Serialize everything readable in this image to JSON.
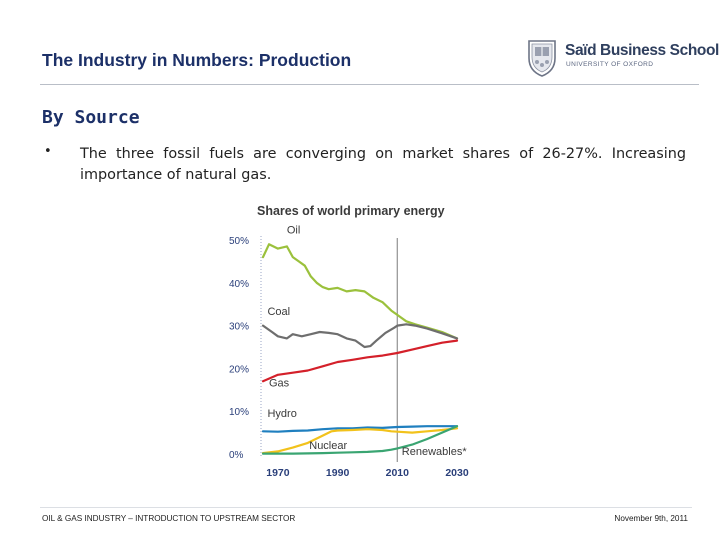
{
  "slide": {
    "title": "The Industry in Numbers: Production",
    "section_heading": "By Source",
    "bullet_marker": "•",
    "bullet_text": "The three fossil fuels are converging on market shares of 26-27%. Increasing importance of natural gas."
  },
  "logo": {
    "name": "Saïd Business School",
    "subtitle": "UNIVERSITY OF OXFORD"
  },
  "footer": {
    "left": "OIL & GAS INDUSTRY – INTRODUCTION TO UPSTREAM SECTOR",
    "right": "November 9th, 2011"
  },
  "colors": {
    "title": "#1c3068",
    "oil": "#9bc13c",
    "coal": "#6e6e6e",
    "gas": "#d4202a",
    "hydro": "#1f7fbf",
    "nuclear": "#f2c21b",
    "renewables": "#3aa572",
    "divider": "#9a9a9a"
  },
  "chart_data": {
    "type": "line",
    "title": "Shares of world primary energy",
    "xlabel": "",
    "ylabel": "",
    "xlim": [
      1965,
      2030
    ],
    "ylim": [
      0,
      50
    ],
    "x_ticks": [
      "1970",
      "1990",
      "2010",
      "2030"
    ],
    "y_ticks": [
      "0%",
      "10%",
      "20%",
      "30%",
      "40%",
      "50%"
    ],
    "divider_year": 2010,
    "series": [
      {
        "name": "Oil",
        "label": "Oil",
        "color": "#9bc13c",
        "x": [
          1965,
          1967,
          1970,
          1973,
          1975,
          1977,
          1979,
          1981,
          1983,
          1985,
          1987,
          1990,
          1993,
          1996,
          1999,
          2002,
          2005,
          2008,
          2010,
          2013,
          2016,
          2020,
          2025,
          2030
        ],
        "y": [
          46,
          49,
          48,
          48.5,
          46,
          45,
          44,
          41.5,
          40,
          39,
          38.5,
          38.8,
          38,
          38.3,
          38,
          36.5,
          35.5,
          33.5,
          32.5,
          31,
          30.3,
          29.5,
          28.5,
          27
        ]
      },
      {
        "name": "Coal",
        "label": "Coal",
        "color": "#6e6e6e",
        "x": [
          1965,
          1968,
          1970,
          1973,
          1975,
          1978,
          1981,
          1984,
          1987,
          1990,
          1993,
          1996,
          1999,
          2001,
          2003,
          2006,
          2009,
          2010,
          2013,
          2016,
          2020,
          2025,
          2030
        ],
        "y": [
          30,
          28.5,
          27.5,
          27,
          28,
          27.5,
          28,
          28.5,
          28.3,
          28,
          27,
          26.5,
          25,
          25.2,
          26.5,
          28.3,
          29.5,
          30,
          30.3,
          30,
          29.3,
          28.2,
          27
        ]
      },
      {
        "name": "Gas",
        "label": "Gas",
        "color": "#d4202a",
        "x": [
          1965,
          1970,
          1975,
          1980,
          1985,
          1990,
          1995,
          2000,
          2005,
          2010,
          2015,
          2020,
          2025,
          2030
        ],
        "y": [
          17,
          18.5,
          19,
          19.5,
          20.5,
          21.5,
          22,
          22.6,
          23,
          23.6,
          24.4,
          25.2,
          26,
          26.5
        ]
      },
      {
        "name": "Hydro",
        "label": "Hydro",
        "color": "#1f7fbf",
        "x": [
          1965,
          1970,
          1975,
          1980,
          1985,
          1990,
          1995,
          2000,
          2005,
          2010,
          2015,
          2020,
          2025,
          2030
        ],
        "y": [
          5.3,
          5.2,
          5.4,
          5.5,
          5.8,
          6.0,
          6.0,
          6.2,
          6.1,
          6.3,
          6.4,
          6.5,
          6.5,
          6.5
        ]
      },
      {
        "name": "Nuclear",
        "label": "Nuclear",
        "color": "#f2c21b",
        "x": [
          1965,
          1970,
          1975,
          1980,
          1985,
          1988,
          1990,
          1995,
          2000,
          2005,
          2008,
          2010,
          2015,
          2020,
          2025,
          2030
        ],
        "y": [
          0.2,
          0.6,
          1.5,
          2.6,
          4.3,
          5.3,
          5.5,
          5.6,
          5.8,
          5.6,
          5.3,
          5.2,
          5.0,
          5.3,
          5.6,
          6.0
        ]
      },
      {
        "name": "Renewables*",
        "label": "Renewables*",
        "color": "#3aa572",
        "x": [
          1965,
          1975,
          1985,
          1990,
          1995,
          2000,
          2005,
          2008,
          2010,
          2015,
          2020,
          2025,
          2030
        ],
        "y": [
          0.1,
          0.1,
          0.2,
          0.3,
          0.4,
          0.5,
          0.7,
          1.0,
          1.3,
          2.2,
          3.5,
          5.0,
          6.5
        ]
      }
    ]
  }
}
